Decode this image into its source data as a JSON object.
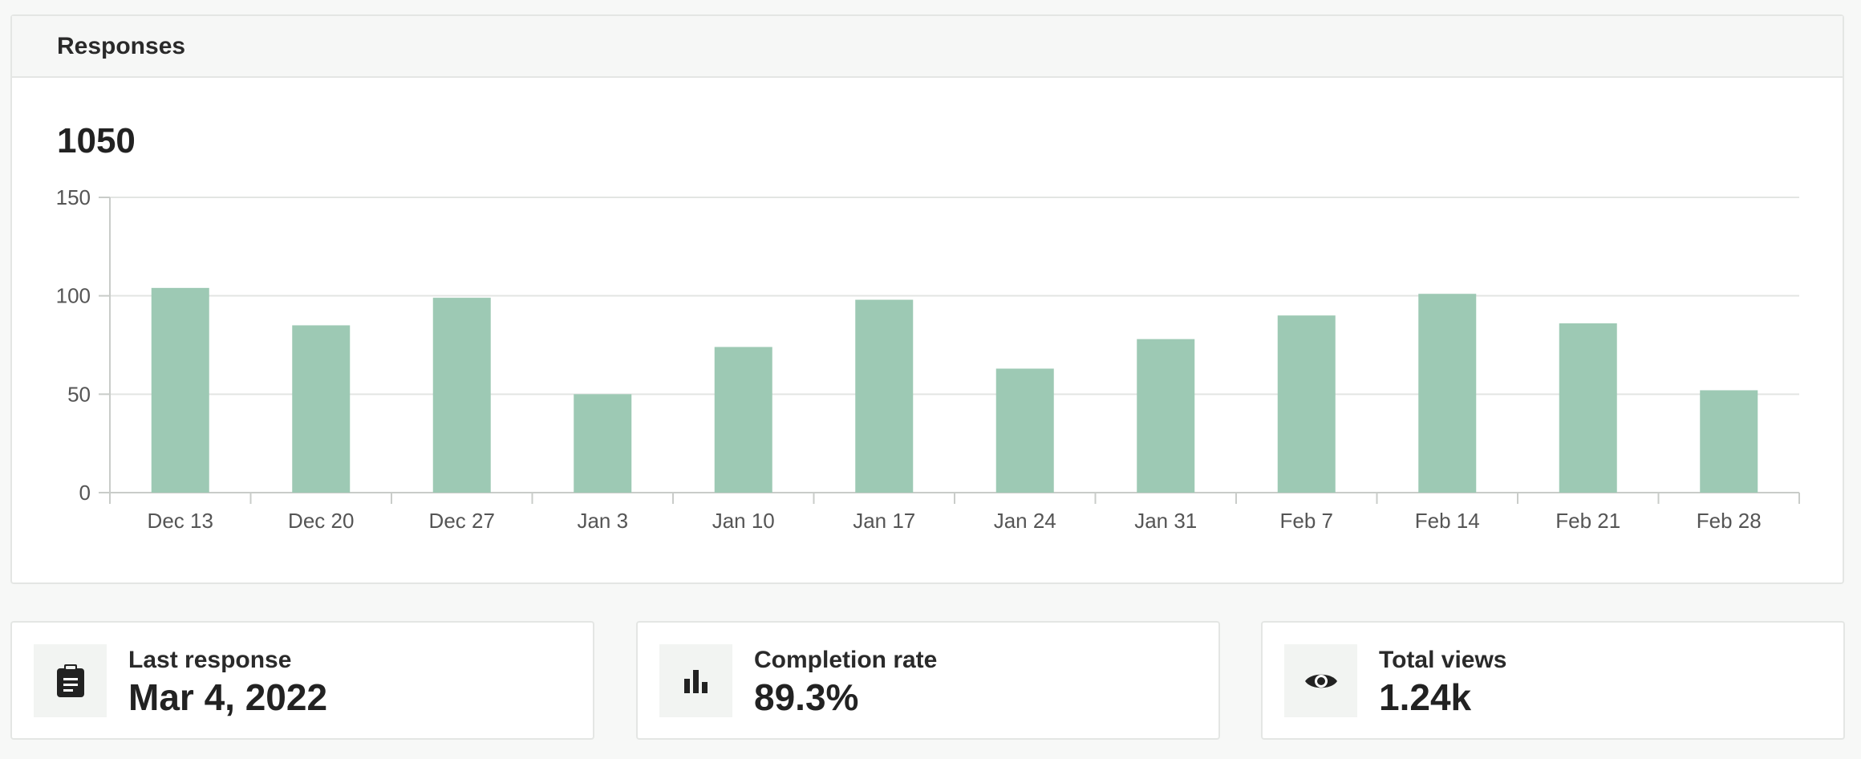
{
  "panel": {
    "title": "Responses",
    "total": "1050"
  },
  "colors": {
    "bar": "#9dc9b4",
    "grid": "#e3e5e3",
    "axis": "#c9ccc9",
    "tick_text": "#555555"
  },
  "chart_data": {
    "type": "bar",
    "categories": [
      "Dec 13",
      "Dec 20",
      "Dec 27",
      "Jan 3",
      "Jan 10",
      "Jan 17",
      "Jan 24",
      "Jan 31",
      "Feb 7",
      "Feb 14",
      "Feb 21",
      "Feb 28"
    ],
    "values": [
      104,
      85,
      99,
      50,
      74,
      98,
      63,
      78,
      90,
      101,
      86,
      52
    ],
    "yticks": [
      0,
      50,
      100,
      150
    ],
    "ylim": [
      0,
      150
    ],
    "grid": true
  },
  "cards": [
    {
      "label": "Last response",
      "value": "Mar 4, 2022",
      "icon": "clipboard-icon"
    },
    {
      "label": "Completion rate",
      "value": "89.3%",
      "icon": "bar-chart-icon"
    },
    {
      "label": "Total views",
      "value": "1.24k",
      "icon": "eye-icon"
    }
  ]
}
